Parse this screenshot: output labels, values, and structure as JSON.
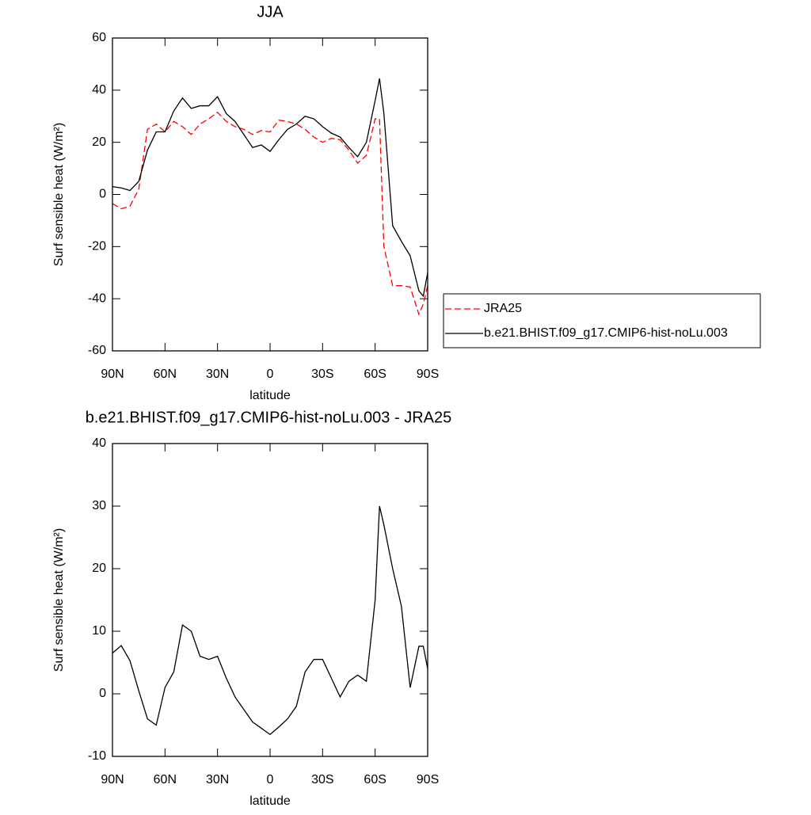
{
  "chart_data": [
    {
      "type": "line",
      "title": "JJA",
      "xlabel": "latitude",
      "ylabel": "Surf sensible heat (W/m²)",
      "x": [
        90,
        85,
        80,
        75,
        70,
        65,
        60,
        55,
        50,
        45,
        40,
        35,
        30,
        25,
        20,
        15,
        10,
        5,
        0,
        -5,
        -10,
        -15,
        -20,
        -25,
        -30,
        -35,
        -40,
        -45,
        -50,
        -55,
        -60,
        -62.5,
        -65,
        -70,
        -75,
        -80,
        -85,
        -87.5,
        -90
      ],
      "xlim": [
        90,
        -90
      ],
      "xticks": [
        {
          "value": 90,
          "label": "90N"
        },
        {
          "value": 60,
          "label": "60N"
        },
        {
          "value": 30,
          "label": "30N"
        },
        0,
        {
          "value": -30,
          "label": "30S"
        },
        {
          "value": -60,
          "label": "60S"
        },
        {
          "value": -90,
          "label": "90S"
        }
      ],
      "ylim": [
        -60,
        60
      ],
      "yticks": [
        -60,
        -40,
        -20,
        0,
        20,
        40,
        60
      ],
      "legend": "right",
      "series": [
        {
          "name": "JRA25",
          "color": "#ff0000",
          "dashed": true,
          "values": [
            -3.5,
            -5.5,
            -4.5,
            2,
            25,
            27,
            24,
            28,
            26,
            23,
            27,
            29,
            31.5,
            28,
            26,
            25,
            23,
            24.5,
            24,
            28.5,
            28,
            27,
            25,
            22,
            20,
            21.5,
            21,
            17,
            12,
            15,
            29,
            29,
            -20,
            -35,
            -35,
            -35.5,
            -46,
            -42,
            -35
          ]
        },
        {
          "name": "b.e21.BHIST.f09_g17.CMIP6-hist-noLu.003",
          "color": "#000000",
          "dashed": false,
          "values": [
            3,
            2.5,
            1.5,
            5,
            17,
            24,
            24,
            32,
            37,
            33,
            34,
            34,
            37.5,
            31,
            28,
            23,
            18,
            19,
            16.5,
            21,
            25,
            27,
            30,
            29,
            26,
            23.5,
            22,
            18,
            14.5,
            20,
            36,
            44.5,
            31,
            -12,
            -18,
            -23.5,
            -37,
            -39,
            -30
          ]
        }
      ]
    },
    {
      "type": "line",
      "title": "b.e21.BHIST.f09_g17.CMIP6-hist-noLu.003 - JRA25",
      "xlabel": "latitude",
      "ylabel": "Surf sensible heat (W/m²)",
      "x": [
        90,
        85,
        80,
        75,
        70,
        65,
        60,
        55,
        50,
        45,
        40,
        35,
        30,
        25,
        20,
        15,
        10,
        5,
        0,
        -5,
        -10,
        -15,
        -20,
        -25,
        -30,
        -35,
        -40,
        -45,
        -50,
        -55,
        -60,
        -62.5,
        -65,
        -70,
        -75,
        -80,
        -85,
        -87.5,
        -90
      ],
      "xlim": [
        90,
        -90
      ],
      "xticks": [
        {
          "value": 90,
          "label": "90N"
        },
        {
          "value": 60,
          "label": "60N"
        },
        {
          "value": 30,
          "label": "30N"
        },
        0,
        {
          "value": -30,
          "label": "30S"
        },
        {
          "value": -60,
          "label": "60S"
        },
        {
          "value": -90,
          "label": "90S"
        }
      ],
      "ylim": [
        -10,
        40
      ],
      "yticks": [
        -10,
        0,
        10,
        20,
        30,
        40
      ],
      "series": [
        {
          "color": "#000000",
          "dashed": false,
          "values": [
            6.5,
            7.7,
            5.3,
            0.5,
            -4,
            -5,
            1,
            3.5,
            11,
            10,
            6,
            5.5,
            6,
            2.5,
            -0.5,
            -2.5,
            -4.5,
            -5.5,
            -6.5,
            -5.3,
            -4,
            -2,
            3.5,
            5.5,
            5.5,
            2.5,
            -0.5,
            2,
            3,
            2,
            15,
            30,
            27,
            20,
            14,
            1,
            7.6,
            7.6,
            4
          ]
        }
      ]
    }
  ]
}
